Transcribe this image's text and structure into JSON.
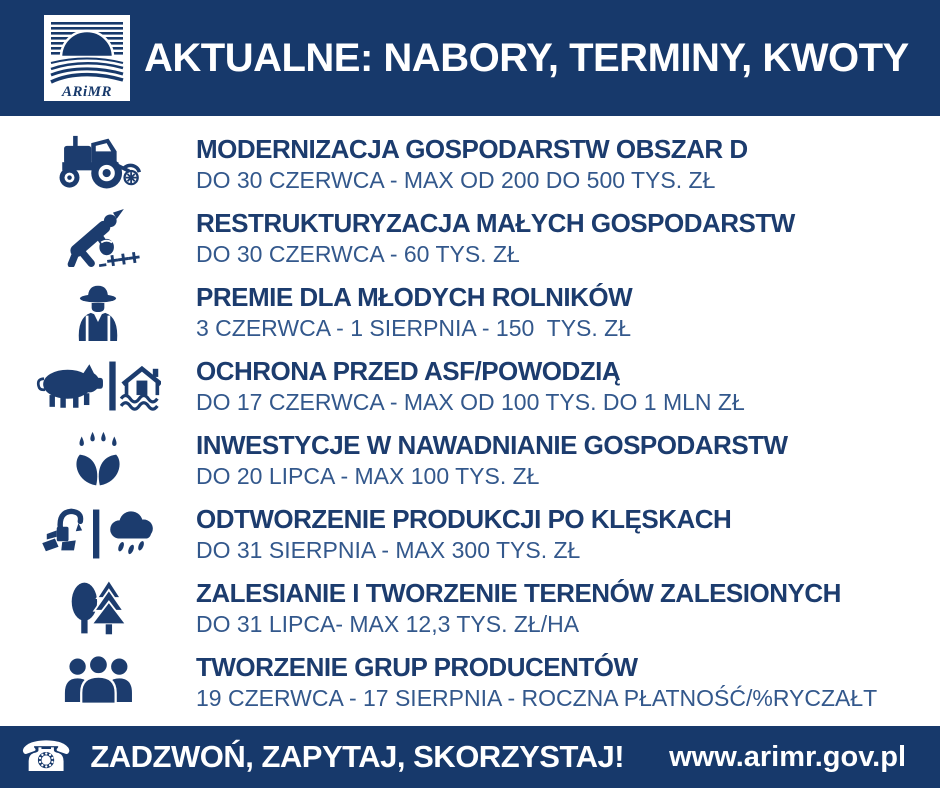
{
  "header": {
    "title": "AKTUALNE: NABORY, TERMINY, KWOTY",
    "logo_text": "ARiMR"
  },
  "colors": {
    "navy": "#17396B",
    "title_text": "#1C3C6E",
    "details_text": "#33588C",
    "white": "#FFFFFF"
  },
  "programs": [
    {
      "icon": "tractor-icon",
      "title": "MODERNIZACJA GOSPODARSTW OBSZAR D",
      "details": "DO 30 CZERWCA - MAX OD 200 DO 500 TYS. ZŁ"
    },
    {
      "icon": "sower-icon",
      "title": "RESTRUKTURYZACJA MAŁYCH GOSPODARSTW",
      "details": "DO 30 CZERWCA - 60 TYS. ZŁ"
    },
    {
      "icon": "farmer-icon",
      "title": "PREMIE DLA MŁODYCH ROLNIKÓW",
      "details": "3 CZERWCA - 1 SIERPNIA - 150  TYS. ZŁ"
    },
    {
      "icon": "pig-flooded-house-icon",
      "title": "OCHRONA PRZED ASF/POWODZIĄ",
      "details": "DO 17 CZERWCA - MAX OD 100 TYS. DO 1 MLN ZŁ"
    },
    {
      "icon": "irrigation-sprout-icon",
      "title": "INWESTYCJE W NAWADNIANIE GOSPODARSTW",
      "details": "DO 20 LIPCA - MAX 100 TYS. ZŁ"
    },
    {
      "icon": "pump-storm-cloud-icon",
      "title": "ODTWORZENIE PRODUKCJI PO KLĘSKACH",
      "details": "DO 31 SIERPNIA - MAX 300 TYS. ZŁ"
    },
    {
      "icon": "trees-icon",
      "title": "ZALESIANIE I TWORZENIE TERENÓW ZALESIONYCH",
      "details": "DO 31 LIPCA- MAX 12,3 TYS. ZŁ/HA"
    },
    {
      "icon": "people-group-icon",
      "title": "TWORZENIE GRUP PRODUCENTÓW",
      "details": "19 CZERWCA - 17 SIERPNIA - ROCZNA PŁATNOŚĆ/%RYCZAŁT"
    }
  ],
  "footer": {
    "phone_icon": "phone-icon",
    "cta": "ZADZWOŃ, ZAPYTAJ, SKORZYSTAJ!",
    "website": "www.arimr.gov.pl"
  }
}
